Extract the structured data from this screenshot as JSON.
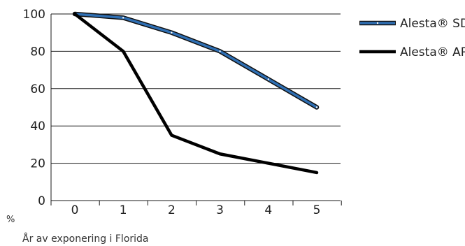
{
  "chart_data": {
    "type": "line",
    "title": "",
    "xlabel": "År av exponering i Florida",
    "ylabel": "%",
    "x": [
      0,
      1,
      2,
      3,
      4,
      5
    ],
    "ylim": [
      0,
      100
    ],
    "yticks": [
      0,
      20,
      40,
      60,
      80,
      100
    ],
    "grid": "horizontal",
    "legend": "right",
    "series": [
      {
        "name": "Alesta® SD",
        "values": [
          100,
          98,
          90,
          80,
          65,
          50
        ],
        "color": "#2f6fb3",
        "style": "outlined-band"
      },
      {
        "name": "Alesta® AP",
        "values": [
          100,
          80,
          35,
          25,
          20,
          15
        ],
        "color": "#000000",
        "style": "solid-thick"
      }
    ]
  }
}
